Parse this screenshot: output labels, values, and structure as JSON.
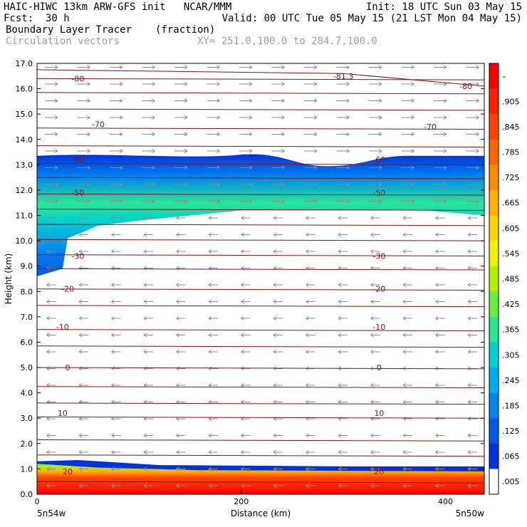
{
  "header": {
    "model_line": "HAIC-HIWC 13km ARW-GFS init   NCAR/MMM",
    "init": "Init: 18 UTC Sun 03 May 15",
    "fcst_label": "Fcst:",
    "fcst_value": "30 h",
    "valid": "Valid: 00 UTC Tue 05 May 15 (21 LST Mon 04 May 15)",
    "field_name": "Boundary Layer Tracer",
    "field_units": "(fraction)",
    "vector_label": "Circulation vectors",
    "xsect_coords": "XY= 251.0,100.0 to 284.7,100.0"
  },
  "chart_data": {
    "type": "heatmap",
    "ylabel": "Height (km)",
    "xlabel": "Distance (km)",
    "xlim": [
      0,
      438
    ],
    "ylim": [
      0.0,
      17.0
    ],
    "x_ticks": [
      0,
      200,
      400
    ],
    "y_ticks": [
      "0.0",
      "1.0",
      "2.0",
      "3.0",
      "4.0",
      "5.0",
      "6.0",
      "7.0",
      "8.0",
      "9.0",
      "10.0",
      "11.0",
      "12.0",
      "13.0",
      "14.0",
      "15.0",
      "16.0",
      "17.0"
    ],
    "endpoint_left": "5n54w",
    "endpoint_right": "5n50w",
    "colorbar_labels": [
      "–",
      ".905",
      ".845",
      ".785",
      ".725",
      ".665",
      ".605",
      ".545",
      ".485",
      ".425",
      ".365",
      ".305",
      ".245",
      ".185",
      ".125",
      ".065",
      ".005"
    ],
    "colorbar_colors": [
      "#ff0000",
      "#ff2000",
      "#ff4400",
      "#ff6800",
      "#ff8c00",
      "#ffb000",
      "#ffd400",
      "#f0f000",
      "#b4f000",
      "#64f03c",
      "#28e696",
      "#00d2d2",
      "#00aaf0",
      "#0082f0",
      "#005ae6",
      "#0032dc",
      "#ffffff"
    ],
    "temperature_contours": [
      {
        "label": "-80",
        "height_km": 16.4
      },
      {
        "label": "-81.3",
        "height_km": 16.5
      },
      {
        "label": "-80",
        "height_km": 16.1
      },
      {
        "label": "-70",
        "height_km": 14.6
      },
      {
        "label": "-70",
        "height_km": 14.5
      },
      {
        "label": "-60",
        "height_km": 13.2
      },
      {
        "label": "-60",
        "height_km": 13.2
      },
      {
        "label": "-50",
        "height_km": 11.9
      },
      {
        "label": "-50",
        "height_km": 11.9
      },
      {
        "label": "-30",
        "height_km": 9.4
      },
      {
        "label": "-30",
        "height_km": 9.4
      },
      {
        "label": "-20",
        "height_km": 8.1
      },
      {
        "label": "-20",
        "height_km": 8.1
      },
      {
        "label": "-10",
        "height_km": 6.6
      },
      {
        "label": "-10",
        "height_km": 6.6
      },
      {
        "label": "0",
        "height_km": 5.0
      },
      {
        "label": "0",
        "height_km": 5.0
      },
      {
        "label": "10",
        "height_km": 3.2
      },
      {
        "label": "10",
        "height_km": 3.2
      },
      {
        "label": "20",
        "height_km": 0.9
      },
      {
        "label": "20",
        "height_km": 0.9
      }
    ]
  }
}
